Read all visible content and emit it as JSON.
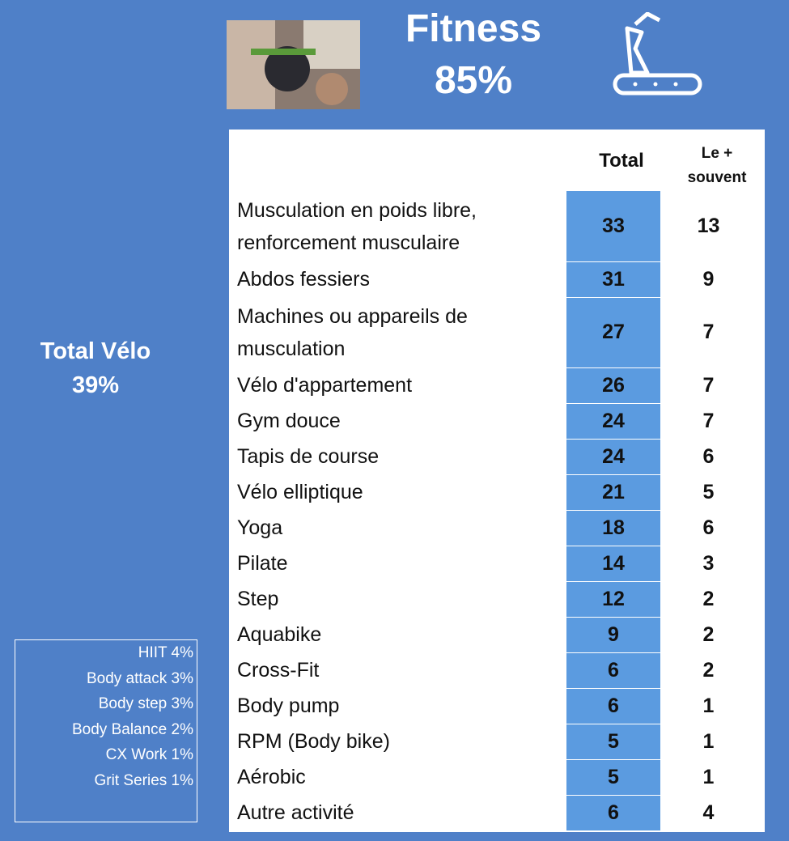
{
  "header": {
    "title": "Fitness",
    "score": "85%"
  },
  "left": {
    "label": "Total Vélo",
    "value": "39%"
  },
  "others": [
    "HIIT 4%",
    "Body attack 3%",
    "Body step 3%",
    "Body Balance 2%",
    "CX Work 1%",
    "Grit Series 1%"
  ],
  "table": {
    "columns": [
      "Total",
      "Le + souvent"
    ],
    "rows": [
      [
        "Musculation en poids libre, renforcement musculaire",
        33,
        13
      ],
      [
        "Abdos fessiers",
        31,
        9
      ],
      [
        "Machines ou appareils de musculation",
        27,
        7
      ],
      [
        "Vélo d'appartement",
        26,
        7
      ],
      [
        "Gym douce",
        24,
        7
      ],
      [
        "Tapis de course",
        24,
        6
      ],
      [
        "Vélo elliptique",
        21,
        5
      ],
      [
        "Yoga",
        18,
        6
      ],
      [
        "Pilate",
        14,
        3
      ],
      [
        "Step",
        12,
        2
      ],
      [
        "Aquabike",
        9,
        2
      ],
      [
        "Cross-Fit",
        6,
        2
      ],
      [
        "Body pump",
        6,
        1
      ],
      [
        "RPM (Body bike)",
        5,
        1
      ],
      [
        "Aérobic",
        5,
        1
      ],
      [
        "Autre activité",
        6,
        4
      ]
    ]
  }
}
